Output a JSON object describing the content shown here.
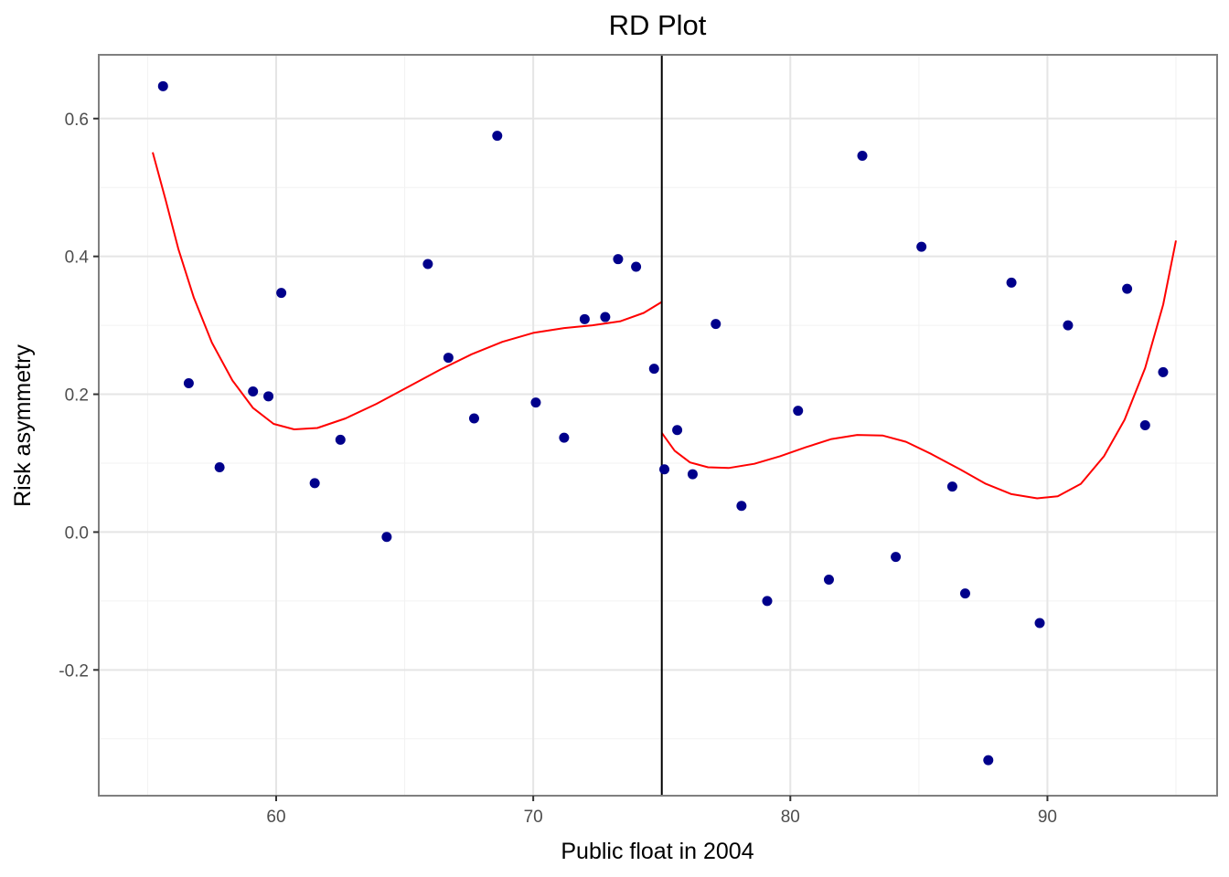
{
  "chart_data": {
    "type": "scatter",
    "title": "RD Plot",
    "xlabel": "Public float in 2004",
    "ylabel": "Risk asymmetry",
    "xlim": [
      53.1,
      96.6
    ],
    "ylim": [
      -0.3825,
      0.6925
    ],
    "x_ticks": [
      60,
      70,
      80,
      90
    ],
    "x_tick_labels": [
      "60",
      "70",
      "80",
      "90"
    ],
    "y_ticks": [
      -0.2,
      0.0,
      0.2,
      0.4,
      0.6
    ],
    "y_tick_labels": [
      "-0.2",
      "0.0",
      "0.2",
      "0.4",
      "0.6"
    ],
    "x_minor": [
      55,
      65,
      75,
      85,
      95
    ],
    "y_minor": [
      -0.3,
      -0.1,
      0.1,
      0.3,
      0.5
    ],
    "grid": true,
    "cutoff": 75,
    "point_color": "#00008b",
    "fit_color": "#ff0000",
    "cutoff_color": "#000000",
    "points": [
      {
        "x": 55.6,
        "y": 0.647
      },
      {
        "x": 56.6,
        "y": 0.216
      },
      {
        "x": 57.8,
        "y": 0.094
      },
      {
        "x": 59.1,
        "y": 0.204
      },
      {
        "x": 59.7,
        "y": 0.197
      },
      {
        "x": 60.2,
        "y": 0.347
      },
      {
        "x": 61.5,
        "y": 0.071
      },
      {
        "x": 62.5,
        "y": 0.134
      },
      {
        "x": 64.3,
        "y": -0.007
      },
      {
        "x": 65.9,
        "y": 0.389
      },
      {
        "x": 66.7,
        "y": 0.253
      },
      {
        "x": 67.7,
        "y": 0.165
      },
      {
        "x": 68.6,
        "y": 0.575
      },
      {
        "x": 70.1,
        "y": 0.188
      },
      {
        "x": 71.2,
        "y": 0.137
      },
      {
        "x": 72.0,
        "y": 0.309
      },
      {
        "x": 72.8,
        "y": 0.312
      },
      {
        "x": 73.3,
        "y": 0.396
      },
      {
        "x": 74.0,
        "y": 0.385
      },
      {
        "x": 74.7,
        "y": 0.237
      },
      {
        "x": 75.1,
        "y": 0.091
      },
      {
        "x": 75.6,
        "y": 0.148
      },
      {
        "x": 76.2,
        "y": 0.084
      },
      {
        "x": 77.1,
        "y": 0.302
      },
      {
        "x": 78.1,
        "y": 0.038
      },
      {
        "x": 79.1,
        "y": -0.1
      },
      {
        "x": 80.3,
        "y": 0.176
      },
      {
        "x": 81.5,
        "y": -0.069
      },
      {
        "x": 82.8,
        "y": 0.546
      },
      {
        "x": 84.1,
        "y": -0.036
      },
      {
        "x": 85.1,
        "y": 0.414
      },
      {
        "x": 86.3,
        "y": 0.066
      },
      {
        "x": 86.8,
        "y": -0.089
      },
      {
        "x": 87.7,
        "y": -0.331
      },
      {
        "x": 88.6,
        "y": 0.362
      },
      {
        "x": 89.7,
        "y": -0.132
      },
      {
        "x": 90.8,
        "y": 0.3
      },
      {
        "x": 93.1,
        "y": 0.353
      },
      {
        "x": 93.8,
        "y": 0.155
      },
      {
        "x": 94.5,
        "y": 0.232
      }
    ],
    "fit_left": [
      {
        "x": 55.2,
        "y": 0.551
      },
      {
        "x": 55.7,
        "y": 0.482
      },
      {
        "x": 56.2,
        "y": 0.41
      },
      {
        "x": 56.8,
        "y": 0.34
      },
      {
        "x": 57.5,
        "y": 0.275
      },
      {
        "x": 58.3,
        "y": 0.22
      },
      {
        "x": 59.1,
        "y": 0.18
      },
      {
        "x": 59.9,
        "y": 0.157
      },
      {
        "x": 60.7,
        "y": 0.149
      },
      {
        "x": 61.6,
        "y": 0.151
      },
      {
        "x": 62.7,
        "y": 0.165
      },
      {
        "x": 63.9,
        "y": 0.186
      },
      {
        "x": 65.2,
        "y": 0.212
      },
      {
        "x": 66.4,
        "y": 0.236
      },
      {
        "x": 67.6,
        "y": 0.258
      },
      {
        "x": 68.8,
        "y": 0.276
      },
      {
        "x": 70.0,
        "y": 0.289
      },
      {
        "x": 71.2,
        "y": 0.296
      },
      {
        "x": 72.3,
        "y": 0.3
      },
      {
        "x": 73.4,
        "y": 0.306
      },
      {
        "x": 74.3,
        "y": 0.318
      },
      {
        "x": 75.0,
        "y": 0.334
      }
    ],
    "fit_right": [
      {
        "x": 75.0,
        "y": 0.144
      },
      {
        "x": 75.5,
        "y": 0.118
      },
      {
        "x": 76.1,
        "y": 0.101
      },
      {
        "x": 76.8,
        "y": 0.094
      },
      {
        "x": 77.6,
        "y": 0.093
      },
      {
        "x": 78.6,
        "y": 0.099
      },
      {
        "x": 79.6,
        "y": 0.11
      },
      {
        "x": 80.6,
        "y": 0.123
      },
      {
        "x": 81.6,
        "y": 0.135
      },
      {
        "x": 82.6,
        "y": 0.141
      },
      {
        "x": 83.6,
        "y": 0.14
      },
      {
        "x": 84.5,
        "y": 0.131
      },
      {
        "x": 85.5,
        "y": 0.113
      },
      {
        "x": 86.6,
        "y": 0.091
      },
      {
        "x": 87.6,
        "y": 0.07
      },
      {
        "x": 88.6,
        "y": 0.055
      },
      {
        "x": 89.6,
        "y": 0.049
      },
      {
        "x": 90.4,
        "y": 0.052
      },
      {
        "x": 91.3,
        "y": 0.07
      },
      {
        "x": 92.2,
        "y": 0.11
      },
      {
        "x": 93.0,
        "y": 0.163
      },
      {
        "x": 93.8,
        "y": 0.238
      },
      {
        "x": 94.5,
        "y": 0.33
      },
      {
        "x": 95.0,
        "y": 0.423
      }
    ]
  }
}
